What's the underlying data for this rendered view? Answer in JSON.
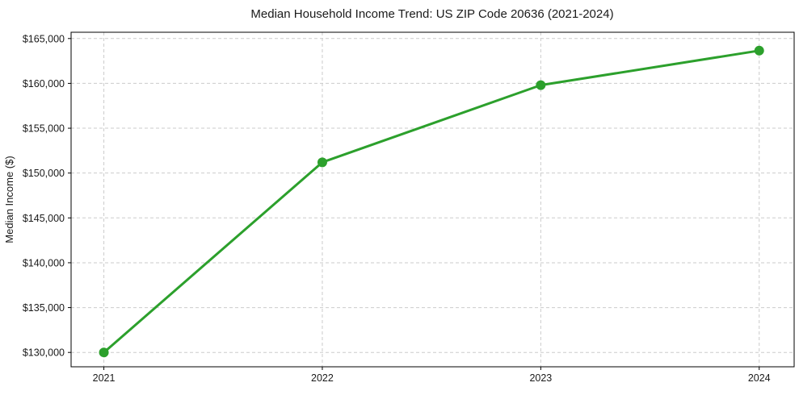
{
  "chart_data": {
    "type": "line",
    "title": "Median Household Income Trend: US ZIP Code 20636 (2021-2024)",
    "xlabel": "",
    "ylabel": "Median Income ($)",
    "categories": [
      "2021",
      "2022",
      "2023",
      "2024"
    ],
    "x": [
      2021,
      2022,
      2023,
      2024
    ],
    "values": [
      130000,
      151200,
      159800,
      163650
    ],
    "yticks": [
      130000,
      135000,
      140000,
      145000,
      150000,
      155000,
      160000,
      165000
    ],
    "ytick_labels": [
      "$130,000",
      "$135,000",
      "$140,000",
      "$145,000",
      "$150,000",
      "$155,000",
      "$160,000",
      "$165,000"
    ],
    "xlim": [
      2020.85,
      2024.16
    ],
    "ylim": [
      128400,
      165700
    ],
    "grid": true,
    "grid_style": "dashed",
    "legend_position": "none",
    "line_color": "#2ca02c",
    "marker": "circle",
    "marker_radius": 6,
    "line_width": 3,
    "colors": {
      "line": "#2ca02c",
      "grid": "#cbcbcb",
      "axis": "#000000",
      "text": "#1a1a1a",
      "background": "#ffffff"
    }
  }
}
